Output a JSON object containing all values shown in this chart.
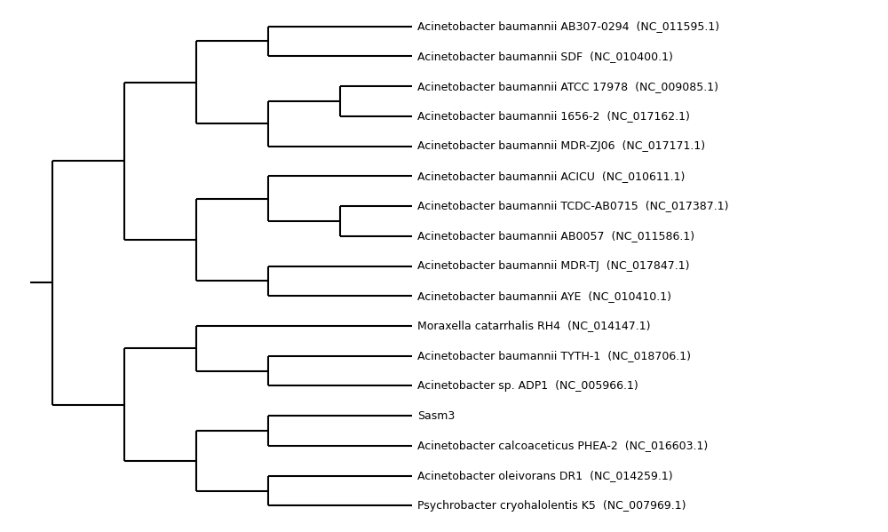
{
  "taxa": [
    "Acinetobacter baumannii AB307-0294  (NC_011595.1)",
    "Acinetobacter baumannii SDF  (NC_010400.1)",
    "Acinetobacter baumannii ATCC 17978  (NC_009085.1)",
    "Acinetobacter baumannii 1656-2  (NC_017162.1)",
    "Acinetobacter baumannii MDR-ZJ06  (NC_017171.1)",
    "Acinetobacter baumannii ACICU  (NC_010611.1)",
    "Acinetobacter baumannii TCDC-AB0715  (NC_017387.1)",
    "Acinetobacter baumannii AB0057  (NC_011586.1)",
    "Acinetobacter baumannii MDR-TJ  (NC_017847.1)",
    "Acinetobacter baumannii AYE  (NC_010410.1)",
    "Moraxella catarrhalis RH4  (NC_014147.1)",
    "Acinetobacter baumannii TYTH-1  (NC_018706.1)",
    "Acinetobacter sp. ADP1  (NC_005966.1)",
    "Sasm3",
    "Acinetobacter calcoaceticus PHEA-2  (NC_016603.1)",
    "Acinetobacter oleivorans DR1  (NC_014259.1)",
    "Psychrobacter cryohalolentis K5  (NC_007969.1)"
  ],
  "background_color": "#ffffff",
  "line_color": "#000000",
  "text_color": "#000000",
  "font_size": 9.0,
  "line_width": 1.5,
  "figwidth": 10.0,
  "figheight": 5.99,
  "dpi": 100
}
